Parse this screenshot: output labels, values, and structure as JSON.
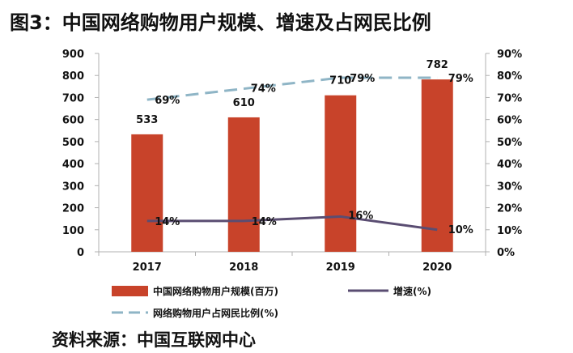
{
  "title": "图3：中国网络购物用户规模、增速及占网民比例",
  "source": "资料来源：中国互联网中心",
  "colors": {
    "bar": "#c8432a",
    "growth_line": "#5a4d72",
    "share_line": "#8fb5c6",
    "axis": "#b0b0b0"
  },
  "chart_data": {
    "type": "bar",
    "title": "图3：中国网络购物用户规模、增速及占网民比例",
    "categories": [
      "2017",
      "2018",
      "2019",
      "2020"
    ],
    "y_left": {
      "lim": [
        0,
        900
      ],
      "ticks": [
        "0",
        "100",
        "200",
        "300",
        "400",
        "500",
        "600",
        "700",
        "800",
        "900"
      ]
    },
    "y_right": {
      "lim": [
        0,
        90
      ],
      "ticks": [
        "0%",
        "10%",
        "20%",
        "30%",
        "40%",
        "50%",
        "60%",
        "70%",
        "80%",
        "90%"
      ]
    },
    "series": [
      {
        "name": "中国网络购物用户规模(百万)",
        "type": "bar",
        "axis": "left",
        "values": [
          533,
          610,
          710,
          782
        ],
        "labels": [
          "533",
          "610",
          "710",
          "782"
        ]
      },
      {
        "name": "增速(%)",
        "type": "line",
        "axis": "right",
        "values": [
          14,
          14,
          16,
          10
        ],
        "labels": [
          "14%",
          "14%",
          "16%",
          "10%"
        ]
      },
      {
        "name": "网络购物用户占网民比例(%)",
        "type": "line",
        "style": "dashed",
        "axis": "right",
        "values": [
          69,
          74,
          79,
          79
        ],
        "labels": [
          "69%",
          "74%",
          "79%",
          "79%"
        ]
      }
    ],
    "grid": false,
    "legend_position": "bottom"
  }
}
